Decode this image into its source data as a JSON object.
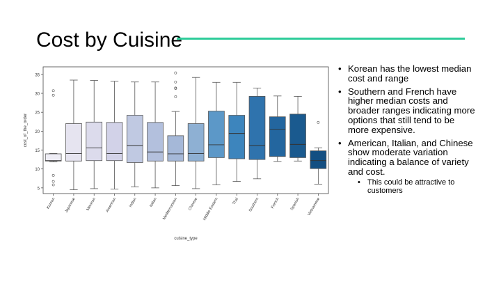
{
  "slide": {
    "title": "Cost by Cuisine",
    "accent_color": "#2ecc9a"
  },
  "bullets": [
    {
      "text": "Korean has the lowest median cost and range",
      "sub": []
    },
    {
      "text": "Southern and French have higher median costs and broader ranges indicating more options that still tend to be more expensive.",
      "sub": []
    },
    {
      "text": "American, Italian, and Chinese show moderate variation indicating a balance of variety and cost.",
      "sub": [
        "This could be attractive to customers"
      ]
    }
  ],
  "chart_data": {
    "type": "boxplot",
    "title": "",
    "xlabel": "cuisine_type",
    "ylabel": "cost_of_the_order",
    "ylim": [
      3.5,
      37
    ],
    "yticks": [
      5,
      10,
      15,
      20,
      25,
      30,
      35
    ],
    "grid": false,
    "categories": [
      "Korean",
      "Japanese",
      "Mexican",
      "American",
      "Indian",
      "Italian",
      "Mediterranean",
      "Chinese",
      "Middle Eastern",
      "Thai",
      "Southern",
      "French",
      "Spanish",
      "Vietnamese"
    ],
    "boxes": [
      {
        "min": 11.9,
        "q1": 12.1,
        "median": 12.2,
        "q3": 14.0,
        "max": 14.1,
        "outliers": [
          5.8,
          6.7,
          8.3,
          29.5,
          30.7
        ],
        "color": "#eeedf5"
      },
      {
        "min": 4.5,
        "q1": 12.1,
        "median": 14.1,
        "q3": 22.0,
        "max": 33.5,
        "outliers": [],
        "color": "#e6e4f0"
      },
      {
        "min": 4.8,
        "q1": 12.2,
        "median": 15.6,
        "q3": 22.4,
        "max": 33.4,
        "outliers": [],
        "color": "#dcdbec"
      },
      {
        "min": 4.7,
        "q1": 12.2,
        "median": 14.1,
        "q3": 22.3,
        "max": 33.2,
        "outliers": [],
        "color": "#d2d2e8"
      },
      {
        "min": 5.3,
        "q1": 11.7,
        "median": 16.2,
        "q3": 24.2,
        "max": 33.0,
        "outliers": [],
        "color": "#c0c9e2"
      },
      {
        "min": 5.0,
        "q1": 12.1,
        "median": 14.5,
        "q3": 22.3,
        "max": 33.0,
        "outliers": [],
        "color": "#b3c0dd"
      },
      {
        "min": 5.6,
        "q1": 12.1,
        "median": 14.0,
        "q3": 18.8,
        "max": 25.2,
        "outliers": [
          29.1,
          31.3,
          31.4,
          33.0,
          35.4
        ],
        "color": "#a5b8d8"
      },
      {
        "min": 4.8,
        "q1": 12.1,
        "median": 14.1,
        "q3": 22.0,
        "max": 34.2,
        "outliers": [],
        "color": "#8eb0d3"
      },
      {
        "min": 5.8,
        "q1": 13.0,
        "median": 16.4,
        "q3": 25.3,
        "max": 32.9,
        "outliers": [],
        "color": "#5c98c8"
      },
      {
        "min": 6.7,
        "q1": 12.7,
        "median": 19.4,
        "q3": 24.2,
        "max": 32.9,
        "outliers": [],
        "color": "#3d85bd"
      },
      {
        "min": 7.4,
        "q1": 12.5,
        "median": 16.2,
        "q3": 29.2,
        "max": 31.4,
        "outliers": [],
        "color": "#2f73ad"
      },
      {
        "min": 12.0,
        "q1": 13.3,
        "median": 20.5,
        "q3": 23.8,
        "max": 29.3,
        "outliers": [],
        "color": "#23669f"
      },
      {
        "min": 12.1,
        "q1": 13.0,
        "median": 16.5,
        "q3": 24.5,
        "max": 29.2,
        "outliers": [],
        "color": "#1a5a8f"
      },
      {
        "min": 6.0,
        "q1": 10.1,
        "median": 12.2,
        "q3": 14.8,
        "max": 15.6,
        "outliers": [
          22.3
        ],
        "color": "#134f82"
      }
    ]
  }
}
